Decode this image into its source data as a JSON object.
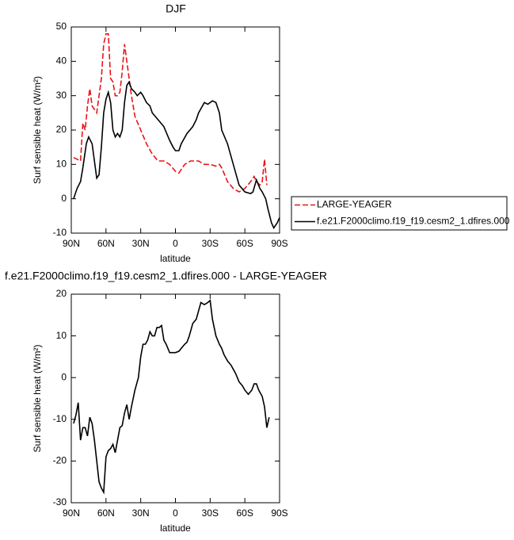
{
  "chart_data": [
    {
      "type": "line",
      "title": "DJF",
      "x_label": "latitude",
      "y_label": "Surf sensible heat (W/m²)",
      "xlim": [
        90,
        -90
      ],
      "xticks": [
        {
          "value": 90,
          "label": "90N"
        },
        {
          "value": 60,
          "label": "60N"
        },
        {
          "value": 30,
          "label": "30N"
        },
        0,
        {
          "value": -30,
          "label": "30S"
        },
        {
          "value": -60,
          "label": "60S"
        },
        {
          "value": -90,
          "label": "90S"
        }
      ],
      "ylim": [
        -10,
        50
      ],
      "yticks": [
        -10,
        0,
        10,
        20,
        30,
        40,
        50
      ],
      "legend": "right",
      "series": [
        {
          "name": "LARGE-YEAGER",
          "color": "#e8141b",
          "dashed": true,
          "x": [
            88,
            85,
            82,
            80,
            78,
            76,
            74,
            72,
            70,
            68,
            66,
            64,
            62,
            60,
            58,
            56,
            54,
            52,
            50,
            48,
            46,
            44,
            42,
            40,
            38,
            35,
            30,
            25,
            20,
            15,
            10,
            5,
            0,
            -3,
            -8,
            -13,
            -20,
            -25,
            -30,
            -35,
            -38,
            -40,
            -45,
            -50,
            -55,
            -60,
            -65,
            -68,
            -70,
            -73,
            -75,
            -77,
            -79
          ],
          "values": [
            12,
            11.5,
            11,
            22,
            20,
            27,
            32,
            27,
            26,
            25,
            30,
            35,
            45,
            48,
            48,
            35,
            34,
            30,
            30,
            31,
            37,
            45,
            40,
            35,
            30,
            24,
            20,
            16,
            13,
            11,
            11,
            10,
            8,
            7.5,
            10,
            11,
            11,
            10,
            10,
            9.5,
            10,
            9,
            5,
            3,
            2,
            3,
            5,
            6.5,
            5,
            4,
            5,
            11.5,
            4
          ]
        },
        {
          "name": "f.e21.F2000climo.f19_f19.cesm2_1.dfires.000",
          "color": "#000000",
          "dashed": false,
          "x": [
            88,
            85,
            82,
            80,
            77,
            75,
            72,
            70,
            68,
            66,
            64,
            62,
            60,
            58,
            56,
            54,
            52,
            50,
            48,
            46,
            44,
            42,
            40,
            38,
            35,
            33,
            30,
            28,
            25,
            22,
            20,
            15,
            10,
            5,
            2,
            0,
            -3,
            -5,
            -10,
            -15,
            -18,
            -20,
            -25,
            -28,
            -32,
            -35,
            -38,
            -40,
            -45,
            -50,
            -55,
            -60,
            -65,
            -67,
            -70,
            -73,
            -75,
            -78,
            -80,
            -83,
            -85,
            -88,
            -90
          ],
          "values": [
            0,
            3,
            5,
            9,
            16,
            18,
            16,
            11,
            6,
            7,
            15,
            25,
            29,
            31,
            28,
            20,
            18,
            19,
            18,
            20,
            28,
            33,
            34,
            32,
            31,
            30,
            31,
            30,
            28,
            27,
            25,
            23,
            21,
            17,
            15,
            14,
            14,
            16,
            19,
            21,
            23,
            25,
            28,
            27.5,
            28.5,
            28,
            25,
            20,
            16,
            10,
            4,
            2,
            1.5,
            2,
            5.5,
            3,
            2,
            0,
            -3,
            -7,
            -8.5,
            -7,
            -5.5
          ]
        }
      ]
    },
    {
      "type": "line",
      "title": "f.e21.F2000climo.f19_f19.cesm2_1.dfires.000 - LARGE-YEAGER",
      "x_label": "latitude",
      "y_label": "Surf sensible heat (W/m²)",
      "xlim": [
        90,
        -90
      ],
      "xticks": [
        {
          "value": 90,
          "label": "90N"
        },
        {
          "value": 60,
          "label": "60N"
        },
        {
          "value": 30,
          "label": "30N"
        },
        0,
        {
          "value": -30,
          "label": "30S"
        },
        {
          "value": -60,
          "label": "60S"
        },
        {
          "value": -90,
          "label": "90S"
        }
      ],
      "ylim": [
        -30,
        20
      ],
      "yticks": [
        -30,
        -20,
        -10,
        0,
        10,
        20
      ],
      "series": [
        {
          "color": "#000000",
          "dashed": false,
          "x": [
            88,
            86,
            84,
            82,
            80,
            78,
            76,
            74,
            72,
            70,
            68,
            66,
            64,
            62,
            60,
            58,
            56,
            54,
            52,
            50,
            48,
            46,
            44,
            42,
            40,
            38,
            35,
            32,
            30,
            28,
            26,
            24,
            22,
            20,
            18,
            16,
            14,
            12,
            10,
            8,
            5,
            2,
            0,
            -3,
            -5,
            -8,
            -10,
            -12,
            -15,
            -18,
            -20,
            -22,
            -25,
            -28,
            -30,
            -32,
            -35,
            -38,
            -40,
            -42,
            -45,
            -48,
            -50,
            -52,
            -55,
            -58,
            -60,
            -63,
            -66,
            -68,
            -70,
            -72,
            -75,
            -77,
            -79,
            -81
          ],
          "values": [
            -11,
            -9,
            -6,
            -15,
            -12,
            -12,
            -14,
            -9.5,
            -11,
            -15,
            -20,
            -25,
            -26.5,
            -27.5,
            -19,
            -17.5,
            -17,
            -16,
            -18,
            -15,
            -12,
            -11.5,
            -8.5,
            -6.5,
            -10,
            -7,
            -3,
            0,
            5,
            8,
            8,
            9,
            11,
            10,
            10,
            12,
            12,
            12.5,
            9,
            8,
            6,
            6,
            6,
            6.3,
            7,
            8,
            8.5,
            10,
            13,
            14,
            16,
            18,
            17.5,
            18,
            18.5,
            14,
            10,
            8,
            7,
            5.5,
            4,
            3,
            2,
            1,
            -1,
            -2,
            -3,
            -4,
            -3,
            -1.5,
            -1.5,
            -3,
            -4.5,
            -7,
            -12,
            -9.5
          ]
        }
      ]
    }
  ]
}
